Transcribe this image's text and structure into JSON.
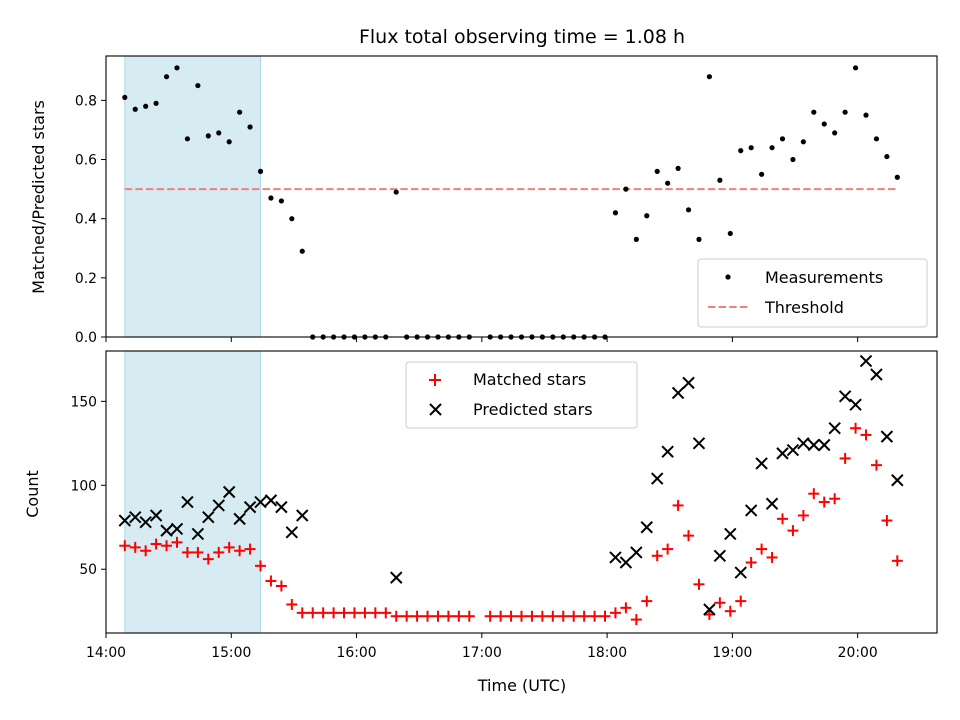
{
  "chart_data": [
    {
      "type": "scatter",
      "title": "Flux total observing time = 1.08 h",
      "xlabel": "",
      "ylabel": "Matched/Predicted stars",
      "xlim": [
        "14:00",
        "20:38"
      ],
      "ylim": [
        0,
        0.95
      ],
      "yticks": [
        "0.0",
        "0.2",
        "0.4",
        "0.6",
        "0.8"
      ],
      "grid": false,
      "legend_position": "lower right",
      "highlight_region": {
        "start": "14:09",
        "end": "15:14",
        "color": "#add8e6"
      },
      "series": [
        {
          "name": "Measurements",
          "marker": "dot",
          "color": "#000000",
          "x": [
            "14:09",
            "14:14",
            "14:19",
            "14:24",
            "14:29",
            "14:34",
            "14:39",
            "14:44",
            "14:49",
            "14:54",
            "14:59",
            "15:04",
            "15:09",
            "15:14",
            "15:19",
            "15:24",
            "15:29",
            "15:34",
            "15:39",
            "15:44",
            "15:49",
            "15:54",
            "15:59",
            "16:04",
            "16:09",
            "16:14",
            "16:19",
            "16:24",
            "16:29",
            "16:34",
            "16:39",
            "16:44",
            "16:49",
            "16:54",
            "17:04",
            "17:09",
            "17:14",
            "17:19",
            "17:24",
            "17:29",
            "17:34",
            "17:39",
            "17:44",
            "17:49",
            "17:54",
            "17:59",
            "18:04",
            "18:09",
            "18:14",
            "18:19",
            "18:24",
            "18:29",
            "18:34",
            "18:39",
            "18:44",
            "18:49",
            "18:54",
            "18:59",
            "19:04",
            "19:09",
            "19:14",
            "19:19",
            "19:24",
            "19:29",
            "19:34",
            "19:39",
            "19:44",
            "19:49",
            "19:54",
            "19:59",
            "20:04",
            "20:09",
            "20:14",
            "20:19"
          ],
          "y": [
            0.81,
            0.77,
            0.78,
            0.79,
            0.88,
            0.91,
            0.67,
            0.85,
            0.68,
            0.69,
            0.66,
            0.76,
            0.71,
            0.56,
            0.47,
            0.46,
            0.4,
            0.29,
            0.0,
            0.0,
            0.0,
            0.0,
            0.0,
            0.0,
            0.0,
            0.0,
            0.49,
            0.0,
            0.0,
            0.0,
            0.0,
            0.0,
            0.0,
            0.0,
            0.0,
            0.0,
            0.0,
            0.0,
            0.0,
            0.0,
            0.0,
            0.0,
            0.0,
            0.0,
            0.0,
            0.0,
            0.42,
            0.5,
            0.33,
            0.41,
            0.56,
            0.52,
            0.57,
            0.43,
            0.33,
            0.88,
            0.53,
            0.35,
            0.63,
            0.64,
            0.55,
            0.64,
            0.67,
            0.6,
            0.66,
            0.76,
            0.72,
            0.69,
            0.76,
            0.91,
            0.75,
            0.67,
            0.61,
            0.54
          ]
        },
        {
          "name": "Threshold",
          "line_style": "dashed",
          "color": "#f08080",
          "x": [
            "14:09",
            "20:19"
          ],
          "y": [
            0.5,
            0.5
          ]
        }
      ]
    },
    {
      "type": "scatter",
      "title": "",
      "xlabel": "Time (UTC)",
      "ylabel": "Count",
      "xlim": [
        "14:00",
        "20:38"
      ],
      "ylim": [
        12,
        180
      ],
      "xticks": [
        "14:00",
        "15:00",
        "16:00",
        "17:00",
        "18:00",
        "19:00",
        "20:00"
      ],
      "yticks": [
        "50",
        "100",
        "150"
      ],
      "grid": false,
      "legend_position": "upper center",
      "highlight_region": {
        "start": "14:09",
        "end": "15:14",
        "color": "#add8e6"
      },
      "series": [
        {
          "name": "Matched stars",
          "marker": "+",
          "color": "#ff0000",
          "x": [
            "14:09",
            "14:14",
            "14:19",
            "14:24",
            "14:29",
            "14:34",
            "14:39",
            "14:44",
            "14:49",
            "14:54",
            "14:59",
            "15:04",
            "15:09",
            "15:14",
            "15:19",
            "15:24",
            "15:29",
            "15:34",
            "15:39",
            "15:44",
            "15:49",
            "15:54",
            "15:59",
            "16:04",
            "16:09",
            "16:14",
            "16:19",
            "16:24",
            "16:29",
            "16:34",
            "16:39",
            "16:44",
            "16:49",
            "16:54",
            "17:04",
            "17:09",
            "17:14",
            "17:19",
            "17:24",
            "17:29",
            "17:34",
            "17:39",
            "17:44",
            "17:49",
            "17:54",
            "17:59",
            "18:04",
            "18:09",
            "18:14",
            "18:19",
            "18:24",
            "18:29",
            "18:34",
            "18:39",
            "18:44",
            "18:49",
            "18:54",
            "18:59",
            "19:04",
            "19:09",
            "19:14",
            "19:19",
            "19:24",
            "19:29",
            "19:34",
            "19:39",
            "19:44",
            "19:49",
            "19:54",
            "19:59",
            "20:04",
            "20:09",
            "20:14",
            "20:19"
          ],
          "y": [
            64,
            63,
            61,
            65,
            64,
            66,
            60,
            60,
            56,
            60,
            63,
            61,
            62,
            52,
            43,
            40,
            29,
            24,
            24,
            24,
            24,
            24,
            24,
            24,
            24,
            24,
            22,
            22,
            22,
            22,
            22,
            22,
            22,
            22,
            22,
            22,
            22,
            22,
            22,
            22,
            22,
            22,
            22,
            22,
            22,
            22,
            24,
            27,
            20,
            31,
            58,
            62,
            88,
            70,
            41,
            23,
            30,
            25,
            31,
            54,
            62,
            57,
            80,
            73,
            82,
            95,
            90,
            92,
            116,
            134,
            130,
            112,
            79,
            55
          ]
        },
        {
          "name": "Predicted stars",
          "marker": "x",
          "color": "#000000",
          "x": [
            "14:09",
            "14:14",
            "14:19",
            "14:24",
            "14:29",
            "14:34",
            "14:39",
            "14:44",
            "14:49",
            "14:54",
            "14:59",
            "15:04",
            "15:09",
            "15:14",
            "15:19",
            "15:24",
            "15:29",
            "15:34",
            "16:19",
            "18:04",
            "18:09",
            "18:14",
            "18:19",
            "18:24",
            "18:29",
            "18:34",
            "18:39",
            "18:44",
            "18:49",
            "18:54",
            "18:59",
            "19:04",
            "19:09",
            "19:14",
            "19:19",
            "19:24",
            "19:29",
            "19:34",
            "19:39",
            "19:44",
            "19:49",
            "19:54",
            "19:59",
            "20:04",
            "20:09",
            "20:14",
            "20:19"
          ],
          "y": [
            79,
            81,
            78,
            82,
            73,
            74,
            90,
            71,
            81,
            88,
            96,
            80,
            87,
            90,
            91,
            87,
            72,
            82,
            45,
            57,
            54,
            60,
            75,
            104,
            120,
            155,
            161,
            125,
            26,
            58,
            71,
            48,
            85,
            113,
            89,
            119,
            121,
            125,
            124,
            124,
            134,
            153,
            148,
            174,
            166,
            129,
            103
          ]
        }
      ]
    }
  ]
}
